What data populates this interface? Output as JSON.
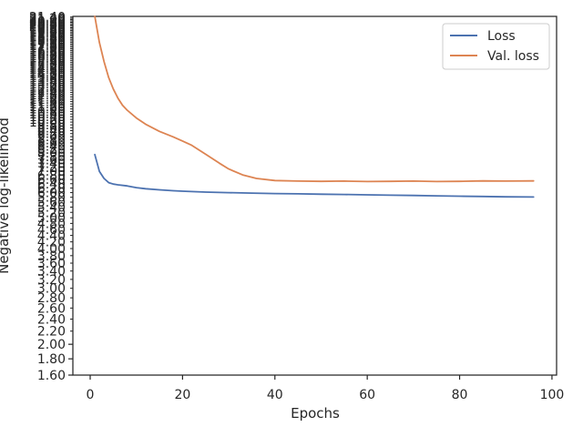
{
  "chart_data": {
    "type": "line",
    "title": "",
    "xlabel": "Epochs",
    "ylabel": "Negative log-likelihood",
    "xlim": [
      -3.75,
      101
    ],
    "xticks": [
      0,
      20,
      40,
      60,
      80,
      100
    ],
    "x_tick_labels": [
      "0",
      "20",
      "40",
      "60",
      "80",
      "100"
    ],
    "y_scale": "log",
    "ylim": [
      1.6,
      21.5
    ],
    "y_tick_values": [
      1.6,
      1.8,
      2.0
    ],
    "y_tick_labels": [
      "1.60",
      "1.80",
      "2.00"
    ],
    "y_tick_note": "dense overlapping tick labels (unreadable) continue above 2.00",
    "grid": false,
    "legend_position": "top-right",
    "series": [
      {
        "name": "Loss",
        "color": "#4c72b0",
        "x": [
          1,
          2,
          3,
          4,
          5,
          6,
          8,
          10,
          12,
          15,
          18,
          20,
          25,
          30,
          35,
          40,
          45,
          50,
          55,
          60,
          65,
          70,
          75,
          80,
          85,
          90,
          96
        ],
        "y": [
          7.9,
          7.0,
          6.65,
          6.45,
          6.38,
          6.35,
          6.3,
          6.22,
          6.17,
          6.12,
          6.08,
          6.06,
          6.02,
          6.0,
          5.98,
          5.96,
          5.945,
          5.93,
          5.92,
          5.905,
          5.89,
          5.875,
          5.86,
          5.845,
          5.835,
          5.82,
          5.81
        ]
      },
      {
        "name": "Val. loss",
        "color": "#dd8452",
        "x": [
          1,
          2,
          3,
          4,
          5,
          6,
          7,
          8,
          10,
          12,
          15,
          18,
          20,
          22,
          25,
          28,
          30,
          33,
          36,
          40,
          45,
          50,
          55,
          60,
          65,
          70,
          75,
          80,
          85,
          90,
          96
        ],
        "y": [
          21.5,
          17.8,
          15.5,
          13.8,
          12.7,
          11.9,
          11.3,
          10.9,
          10.3,
          9.85,
          9.35,
          8.98,
          8.72,
          8.45,
          7.92,
          7.42,
          7.12,
          6.82,
          6.65,
          6.55,
          6.52,
          6.51,
          6.52,
          6.5,
          6.51,
          6.52,
          6.5,
          6.51,
          6.53,
          6.52,
          6.53
        ]
      }
    ]
  }
}
